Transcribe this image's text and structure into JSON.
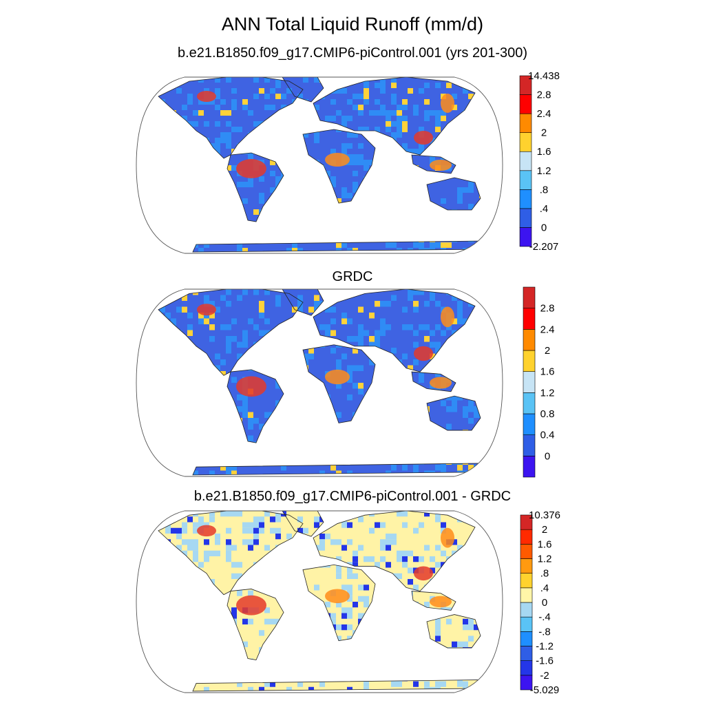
{
  "figure": {
    "title": "ANN Total Liquid Runoff (mm/d)"
  },
  "panels": [
    {
      "title": "b.e21.B1850.f09_g17.CMIP6-piControl.001 (yrs 201-300)",
      "colorbar": {
        "colors": [
          "#3c14f0",
          "#2f5ee6",
          "#1f8fff",
          "#5ac3f5",
          "#c7e4f5",
          "#ffd22e",
          "#ff8a00",
          "#ff0000",
          "#d42626"
        ],
        "labels": [
          "-2.207",
          "0",
          ".4",
          ".8",
          "1.2",
          "1.6",
          "2",
          "2.4",
          "2.8",
          "14.438"
        ]
      },
      "map_colors": {
        "base": "#3f63e2",
        "alt": "#2f8cf5",
        "hot": [
          "#e43a2a",
          "#ff8c1a",
          "#ffd23a"
        ]
      }
    },
    {
      "title": "GRDC",
      "colorbar": {
        "colors": [
          "#3c14f0",
          "#2f5ee6",
          "#1f8fff",
          "#5ac3f5",
          "#c7e4f5",
          "#ffd22e",
          "#ff8a00",
          "#ff0000",
          "#d42626"
        ],
        "labels": [
          "0",
          "0.4",
          "0.8",
          "1.2",
          "1.6",
          "2",
          "2.4",
          "2.8"
        ]
      },
      "map_colors": {
        "base": "#3f63e2",
        "alt": "#2f8cf5",
        "hot": [
          "#e43a2a",
          "#ff8c1a",
          "#ffd23a"
        ]
      }
    },
    {
      "title": "b.e21.B1850.f09_g17.CMIP6-piControl.001 - GRDC",
      "colorbar": {
        "colors": [
          "#3c14f0",
          "#2436e8",
          "#2f5ee6",
          "#1f8fff",
          "#5ac3f5",
          "#a6d8f2",
          "#fff5a8",
          "#ffd22e",
          "#ff9a10",
          "#ff5a00",
          "#ff2a00",
          "#d42626"
        ],
        "labels": [
          "-5.029",
          "-2",
          "-1.6",
          "-1.2",
          "-.8",
          "-.4",
          "0",
          ".4",
          ".8",
          "1.2",
          "1.6",
          "2",
          "10.376"
        ]
      },
      "map_colors": {
        "base": "#fff3a6",
        "alt": "#a6d8f2",
        "hot": [
          "#e43a2a",
          "#ff8c1a",
          "#2436e8"
        ]
      }
    }
  ]
}
